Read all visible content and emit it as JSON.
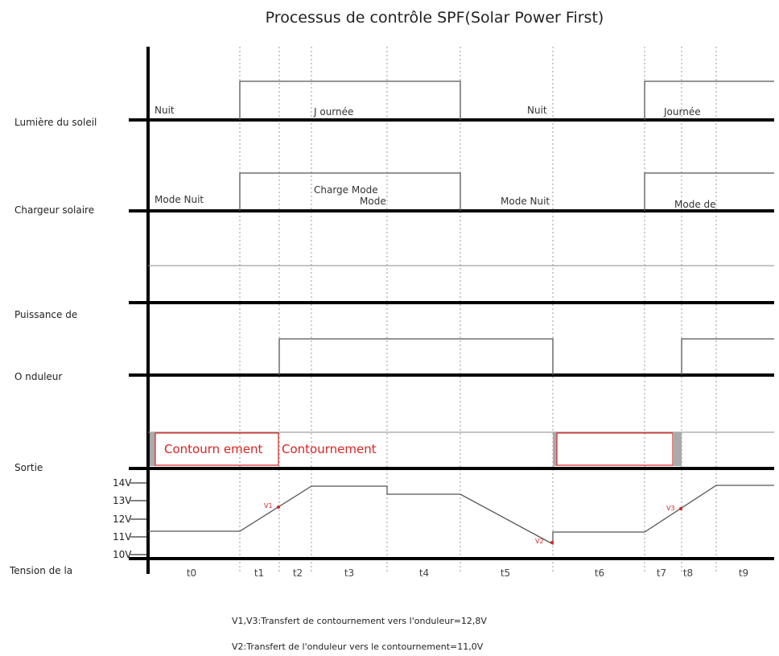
{
  "title": "Processus de contrôle SPF(Solar Power First)",
  "row_labels": {
    "sunlight": "Lumière du soleil",
    "charger": "Chargeur solaire",
    "power_a": "Puissance de",
    "inverter": "O nduleur",
    "output": "Sortie",
    "voltage": "Tension de la"
  },
  "sunlight_labels": {
    "night1": "Nuit",
    "day1": "J ournée",
    "night2": "Nuit",
    "day2": "Journée"
  },
  "charger_labels": {
    "night_mode1": "Mode Nuit",
    "charge_mode": "Charge Mode",
    "mode": "Mode",
    "night_mode2": "Mode Nuit",
    "mode_de": "Mode de"
  },
  "output_labels": {
    "bypass1": "Contourn ement",
    "bypass2": "Contournement"
  },
  "voltage_ticks": [
    "14V",
    "13V",
    "12V",
    "11V",
    "10V"
  ],
  "voltage_markers": {
    "v1": "V1",
    "v2": "V2",
    "v3": "V3"
  },
  "time_labels": [
    "t0",
    "t1",
    "t2",
    "t3",
    "t4",
    "t5",
    "t6",
    "t7",
    "t8",
    "t9"
  ],
  "notes": {
    "line1": "V1,V3:Transfert de contournement vers l'onduleur=12,8V",
    "line2": "V2:Transfert de l'onduleur vers le contournement=11,0V"
  },
  "colors": {
    "accent_red": "#dd2222",
    "line": "#555555",
    "axis": "#000000"
  }
}
